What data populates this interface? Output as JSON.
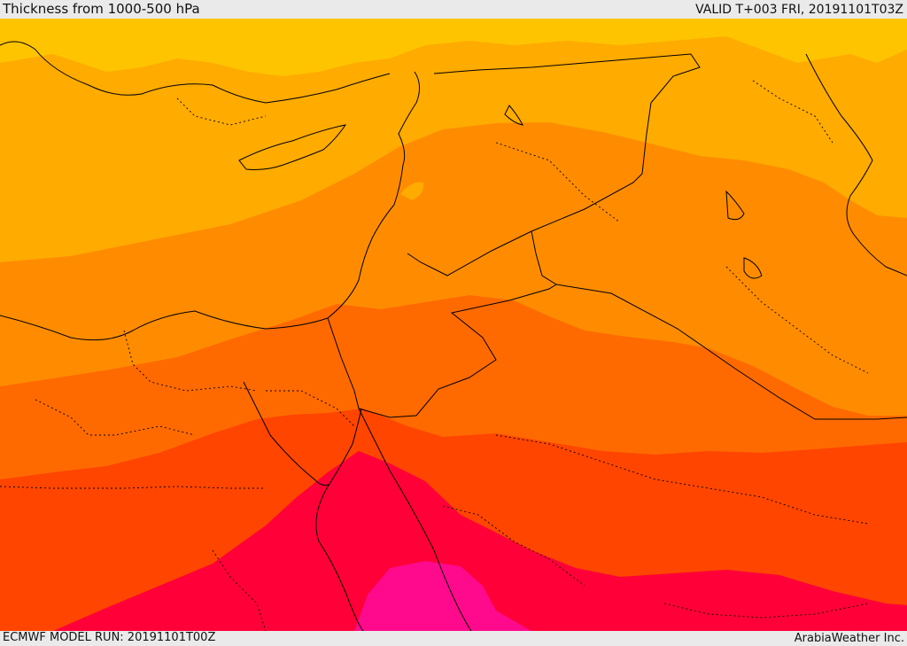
{
  "header": {
    "title": "Thickness from 1000-500 hPa",
    "valid": "VALID T+003 FRI, 20191101T03Z"
  },
  "footer": {
    "model_run": "ECMWF MODEL RUN: 20191101T00Z",
    "credit": "ArabiaWeather Inc."
  },
  "map": {
    "field": "Thickness from 1000-500 hPa",
    "color_bands": [
      {
        "name": "band-1",
        "color": "#ffc400"
      },
      {
        "name": "band-2",
        "color": "#ffab00"
      },
      {
        "name": "band-3",
        "color": "#ff8c00"
      },
      {
        "name": "band-4",
        "color": "#ff6a00"
      },
      {
        "name": "band-5",
        "color": "#ff4500"
      },
      {
        "name": "band-6",
        "color": "#ff0038"
      },
      {
        "name": "band-7",
        "color": "#ff0a8c"
      }
    ],
    "boundary_color": "#000000"
  }
}
